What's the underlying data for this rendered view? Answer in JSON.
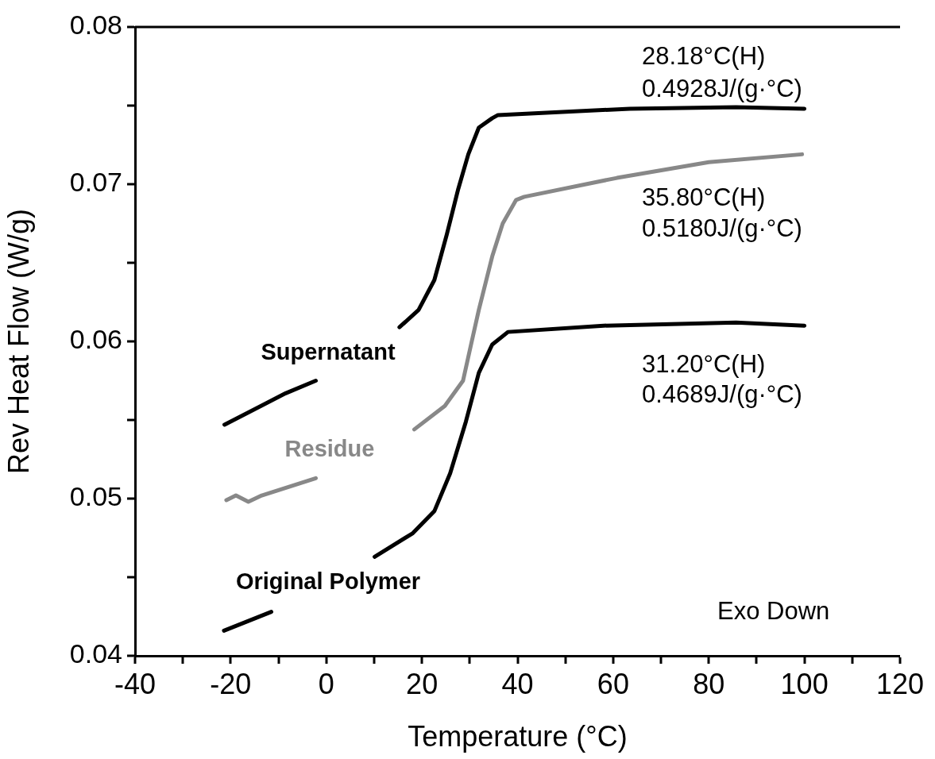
{
  "chart_data": {
    "type": "line",
    "xlabel": "Temperature (°C)",
    "ylabel": "Rev Heat Flow (W/g)",
    "xlim": [
      -40,
      120
    ],
    "ylim": [
      0.04,
      0.08
    ],
    "xticks": [
      -40,
      {
        "value": -30,
        "label": null
      },
      -20,
      {
        "value": -10,
        "label": null
      },
      0,
      {
        "value": 10,
        "label": null
      },
      20,
      {
        "value": 30,
        "label": null
      },
      40,
      {
        "value": 50,
        "label": null
      },
      60,
      {
        "value": 70,
        "label": null
      },
      80,
      {
        "value": 90,
        "label": null
      },
      100,
      {
        "value": 110,
        "label": null
      },
      120
    ],
    "yticks": [
      0.04,
      {
        "value": 0.045,
        "label": null
      },
      0.05,
      {
        "value": 0.055,
        "label": null
      },
      0.06,
      {
        "value": 0.065,
        "label": null
      },
      0.07,
      {
        "value": 0.075,
        "label": null
      },
      0.08
    ],
    "grid": false,
    "legend": false,
    "marker": "none",
    "line_style": "solid",
    "series": [
      {
        "name": "Supernatant",
        "color": "#000000",
        "x": [
          -21.3,
          -8.5,
          -2.2,
          6,
          15.3,
          19.3,
          22.6,
          25.2,
          27.6,
          29.7,
          31.9,
          34.7,
          35.9,
          63.5,
          85.7,
          100
        ],
        "values": [
          0.0547,
          0.0567,
          0.0575,
          null,
          0.0609,
          0.062,
          0.0639,
          0.0668,
          0.0697,
          0.0719,
          0.0736,
          0.0742,
          0.0744,
          0.0748,
          0.0749,
          0.0748
        ]
      },
      {
        "name": "Residue",
        "color": "#888888",
        "x": [
          -20.9,
          -18.9,
          -16.3,
          -13.5,
          -2.2,
          8,
          18.4,
          24.8,
          28.6,
          30.2,
          31.9,
          34.7,
          36.9,
          39.7,
          41.4,
          60.8,
          80,
          99.5
        ],
        "values": [
          0.0499,
          0.0502,
          0.0498,
          0.0502,
          0.0513,
          null,
          0.0544,
          0.0559,
          0.0575,
          0.0597,
          0.062,
          0.0654,
          0.0675,
          0.069,
          0.0692,
          0.0704,
          0.0714,
          0.0719
        ]
      },
      {
        "name": "Original Polymer",
        "color": "#000000",
        "x": [
          -21.4,
          -11.5,
          0,
          10.1,
          18.1,
          22.6,
          25.9,
          29.2,
          31.9,
          34.7,
          38,
          58,
          85.7,
          100
        ],
        "values": [
          0.0416,
          0.0428,
          null,
          0.0463,
          0.0478,
          0.0492,
          0.0516,
          0.0549,
          0.058,
          0.0598,
          0.0606,
          0.061,
          0.0612,
          0.061
        ]
      }
    ],
    "annotations": [
      "28.18°C(H)",
      "0.4928J/(g·°C)",
      "35.80°C(H)",
      "0.5180J/(g·°C)",
      "31.20°C(H)",
      "0.4689J/(g·°C)",
      "Exo Down"
    ]
  }
}
